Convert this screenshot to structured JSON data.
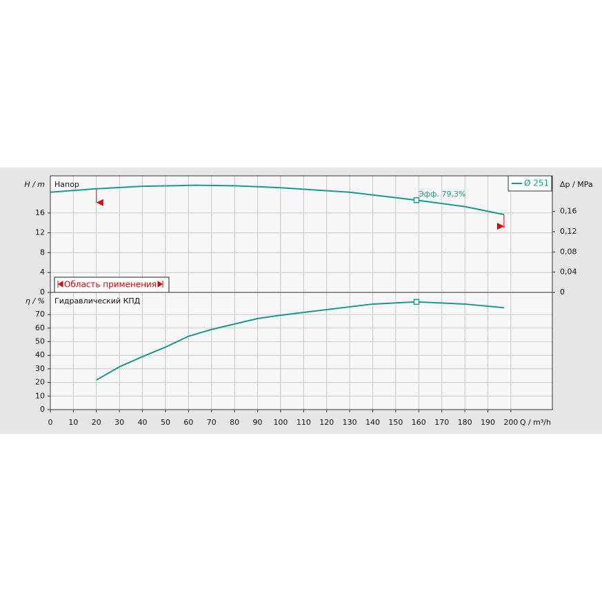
{
  "chart_data": [
    {
      "type": "line",
      "title": "Напор",
      "y_label": "H / m",
      "y2_label": "Δp / MPa",
      "x": [
        0,
        20,
        40,
        63,
        80,
        100,
        130,
        159,
        180,
        197
      ],
      "series": [
        {
          "name": "Ø 251",
          "color": "#17998a",
          "values": [
            20.2,
            20.9,
            21.4,
            21.6,
            21.5,
            21.1,
            20.2,
            18.6,
            17.3,
            15.7
          ]
        }
      ],
      "xlim": [
        0,
        218
      ],
      "ylim": [
        0,
        23.5
      ],
      "yticks": [
        0,
        4,
        8,
        12,
        16
      ],
      "y2lim": [
        0,
        0.2305
      ],
      "y2ticks": [
        0,
        {
          "value": 0.04,
          "label": "0,04"
        },
        {
          "value": 0.08,
          "label": "0,08"
        },
        {
          "value": 0.12,
          "label": "0,12"
        },
        {
          "value": 0.16,
          "label": "0,16"
        }
      ],
      "marker": {
        "x": 159,
        "y": 18.6
      },
      "annotation": "Эфф.  79,3%",
      "range": {
        "label": "Область применения",
        "x": [
          20,
          197
        ]
      },
      "grid": true
    },
    {
      "type": "line",
      "title": "Гидравлический КПД",
      "y_label": "η / %",
      "x_label": "Q / m³/h",
      "x": [
        20,
        30,
        40,
        50,
        60,
        70,
        80,
        90,
        100,
        120,
        140,
        159,
        180,
        197
      ],
      "series": [
        {
          "color": "#17998a",
          "values": [
            21.8,
            31.5,
            39,
            46,
            54,
            59,
            63,
            67,
            69.5,
            73.6,
            77.7,
            79.3,
            77.7,
            75
          ]
        }
      ],
      "xlim": [
        0,
        218
      ],
      "xticks": [
        0,
        10,
        20,
        30,
        40,
        50,
        60,
        70,
        80,
        90,
        100,
        110,
        120,
        130,
        140,
        150,
        160,
        170,
        180,
        190,
        200
      ],
      "ylim": [
        0,
        86.3
      ],
      "yticks": [
        0,
        10,
        20,
        30,
        40,
        50,
        60,
        70
      ],
      "marker": {
        "x": 159,
        "y": 79.3
      },
      "grid": true
    }
  ]
}
